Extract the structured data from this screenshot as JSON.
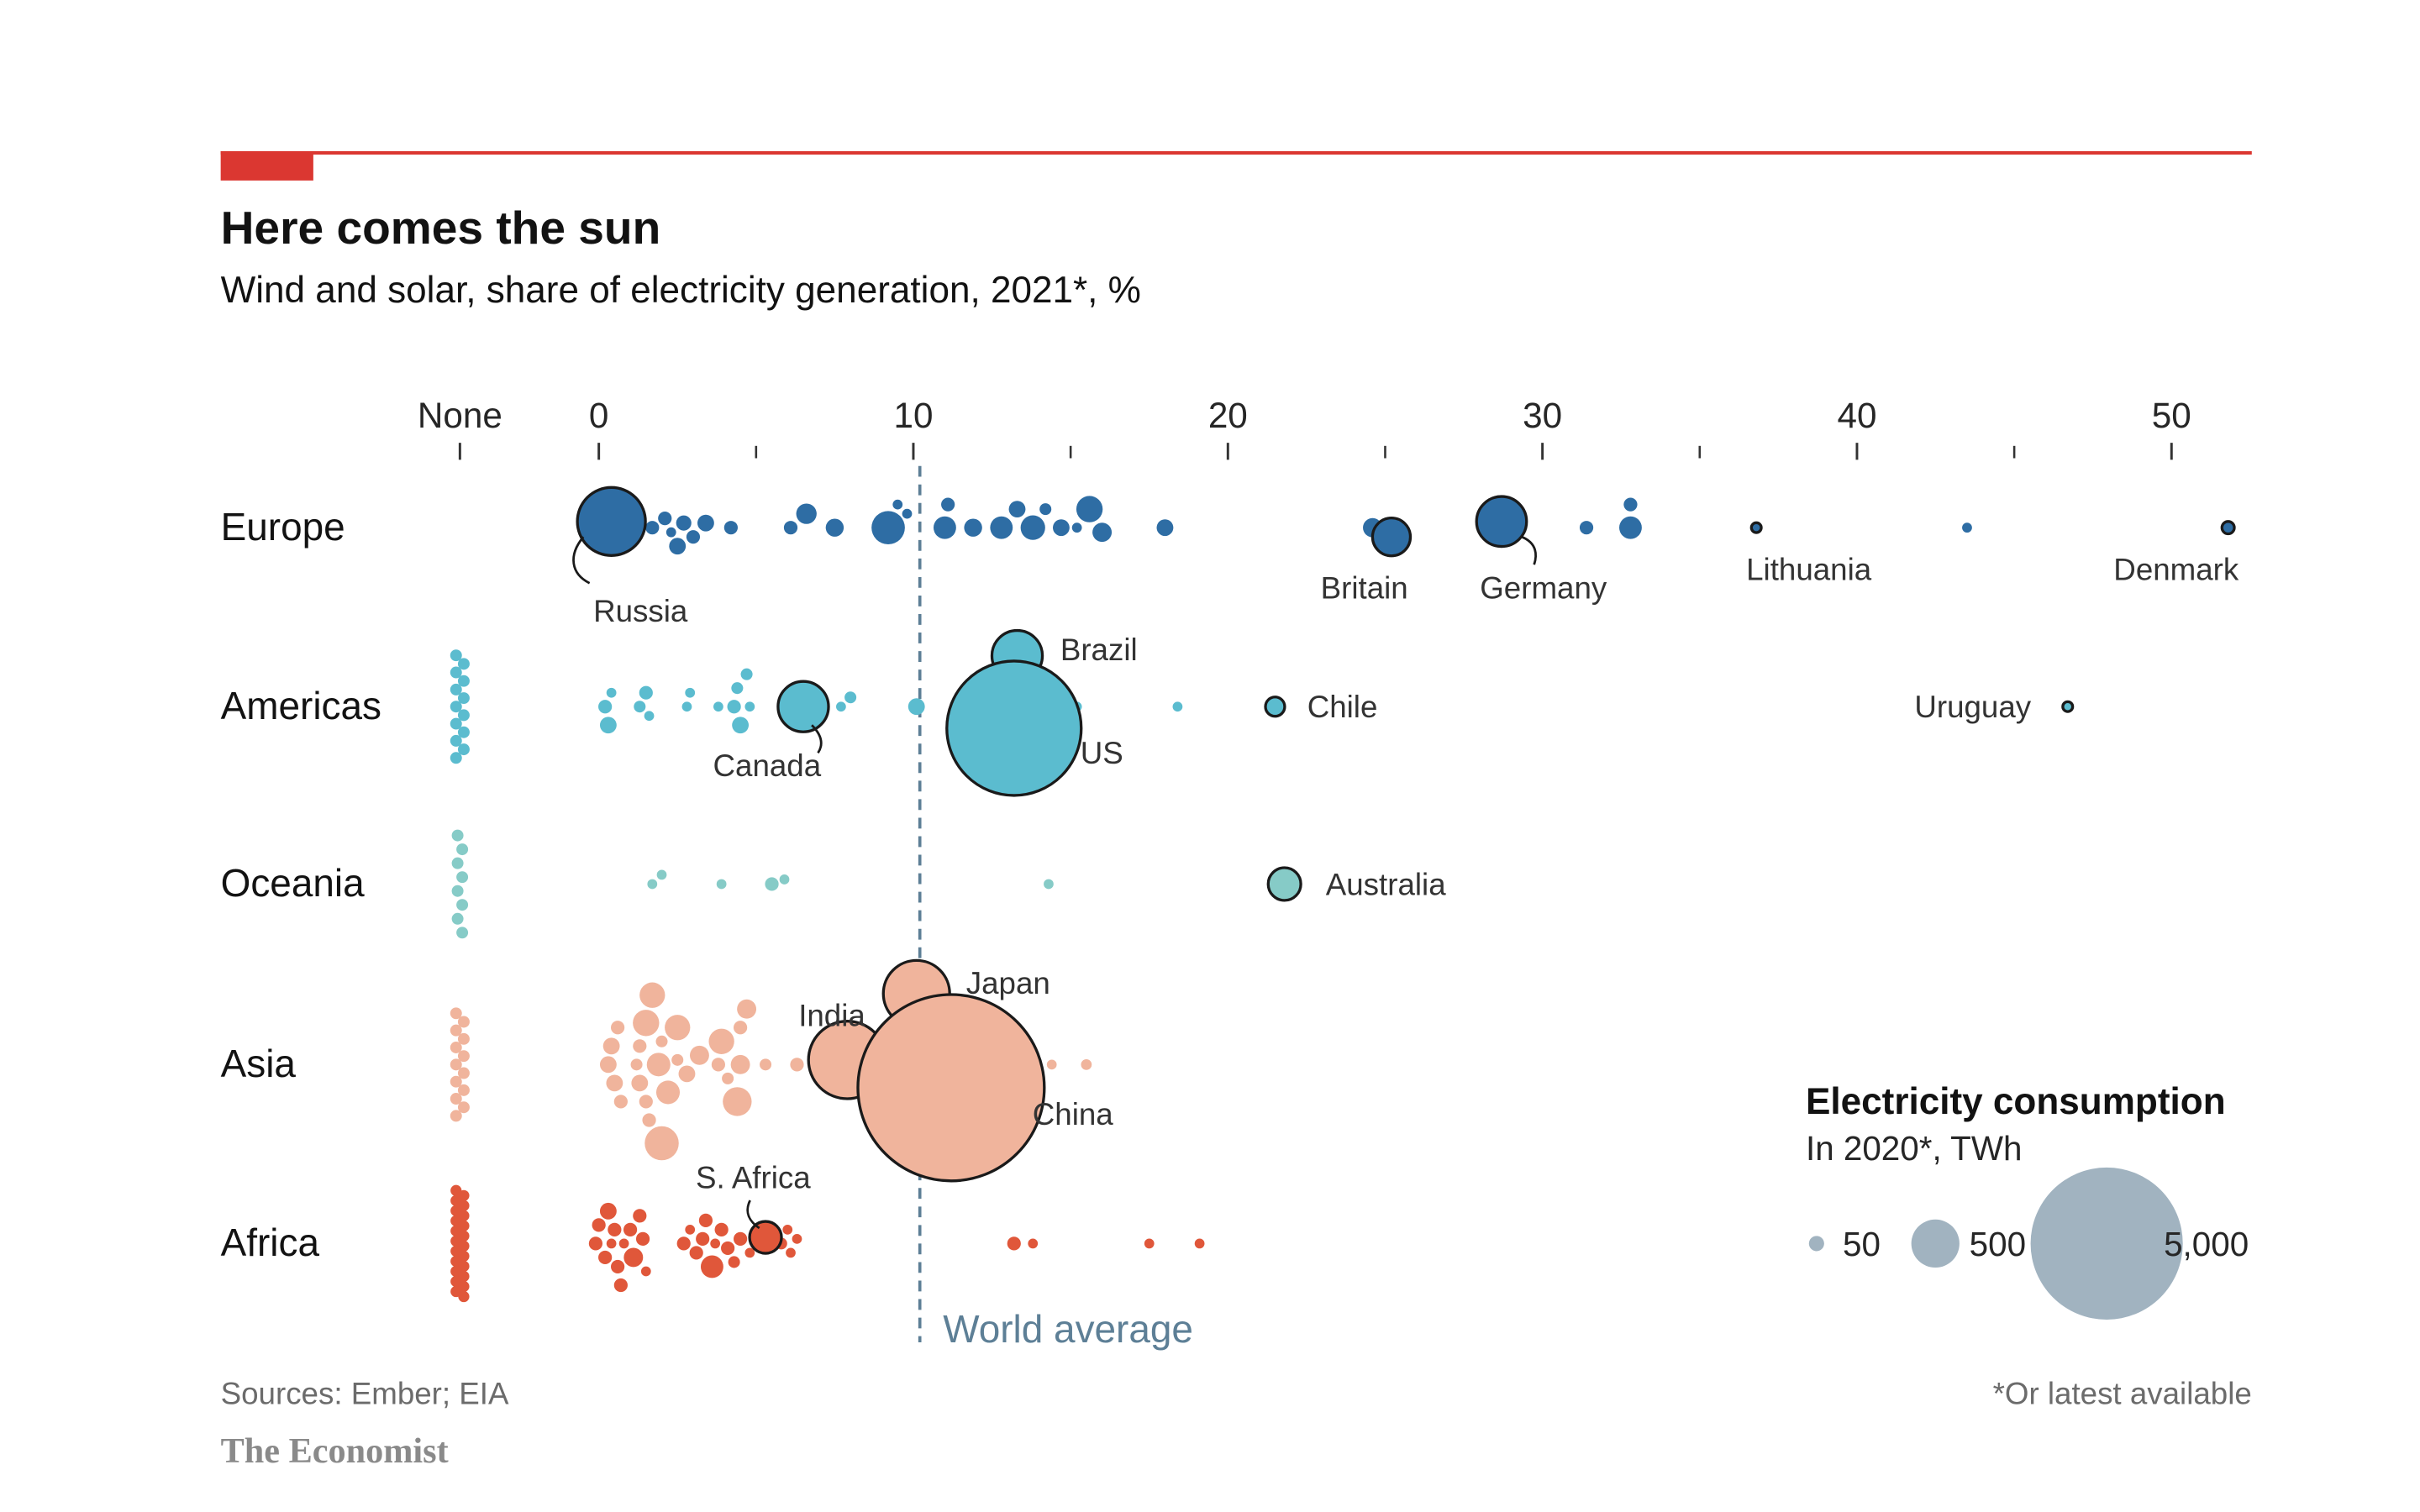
{
  "header": {
    "title": "Here comes the sun",
    "subtitle": "Wind and solar, share of electricity generation, 2021*, %"
  },
  "footer": {
    "source": "Sources: Ember; EIA",
    "brand": "The Economist",
    "note": "*Or latest available"
  },
  "colors": {
    "accent_red": "#e3120b",
    "Europe": "#2e6da4",
    "Americas": "#5bbccf",
    "Oceania": "#86cbc7",
    "Asia": "#f0b49c",
    "Africa": "#e0573a",
    "world_average": "#5d7f96",
    "legend_bubble": "#a1b3c0"
  },
  "chart_data": {
    "type": "scatter",
    "subtype": "beeswarm-bubble",
    "title": "Here comes the sun",
    "subtitle": "Wind and solar, share of electricity generation, 2021*, %",
    "xlabel": "Wind and solar share of electricity generation, %",
    "ylabel": "",
    "x_ticks": [
      "None",
      "0",
      "10",
      "20",
      "30",
      "40",
      "50"
    ],
    "xlim": [
      0,
      52
    ],
    "grid": false,
    "reference_line": {
      "label": "World average",
      "value": 10.2
    },
    "size_legend": {
      "title": "Electricity consumption",
      "subtitle": "In 2020*, TWh",
      "values": [
        50,
        500,
        5000
      ],
      "labels": [
        "50",
        "500",
        "5,000"
      ],
      "placement": "bottom-right"
    },
    "categories": [
      "Europe",
      "Americas",
      "Oceania",
      "Asia",
      "Africa"
    ],
    "series": [
      {
        "name": "Europe",
        "none_count": 0,
        "labelled": [
          {
            "name": "Russia",
            "value": 0.4,
            "twh": 1000
          },
          {
            "name": "Britain",
            "value": 25.2,
            "twh": 310
          },
          {
            "name": "Germany",
            "value": 28.7,
            "twh": 540
          },
          {
            "name": "Lithuania",
            "value": 36.8,
            "twh": 12
          },
          {
            "name": "Denmark",
            "value": 51.8,
            "twh": 33
          }
        ],
        "values": [
          0.1,
          0.6,
          0.9,
          1.3,
          1.7,
          2.1,
          2.3,
          2.5,
          2.7,
          3.0,
          3.4,
          4.2,
          6.1,
          6.6,
          7.5,
          9.2,
          9.5,
          9.8,
          11.0,
          11.1,
          11.9,
          12.8,
          13.3,
          13.8,
          14.2,
          14.7,
          15.2,
          15.6,
          16.0,
          18.0,
          24.6,
          28.5,
          31.4,
          32.8,
          32.8,
          43.5
        ],
        "sizes_twh": [
          60,
          40,
          60,
          30,
          40,
          40,
          20,
          60,
          50,
          40,
          60,
          40,
          40,
          90,
          70,
          240,
          20,
          20,
          110,
          40,
          70,
          110,
          60,
          130,
          30,
          60,
          20,
          150,
          80,
          60,
          80,
          40,
          40,
          110,
          40,
          15
        ]
      },
      {
        "name": "Americas",
        "none_count": 13,
        "labelled": [
          {
            "name": "Canada",
            "value": 6.5,
            "twh": 550
          },
          {
            "name": "Brazil",
            "value": 13.3,
            "twh": 550
          },
          {
            "name": "US",
            "value": 13.2,
            "twh": 3900
          },
          {
            "name": "Chile",
            "value": 21.5,
            "twh": 80
          },
          {
            "name": "Uruguay",
            "value": 46.7,
            "twh": 11
          }
        ],
        "values": [
          0.2,
          0.4,
          0.3,
          1.3,
          1.5,
          1.6,
          2.8,
          2.9,
          3.8,
          4.3,
          4.4,
          4.5,
          4.7,
          4.8,
          7.7,
          8.0,
          10.1,
          11.9,
          12.1,
          14.8,
          15.2,
          18.4
        ],
        "sizes_twh": [
          40,
          20,
          60,
          30,
          40,
          20,
          20,
          20,
          20,
          40,
          30,
          60,
          30,
          20,
          20,
          30,
          60,
          110,
          30,
          20,
          20,
          20
        ]
      },
      {
        "name": "Oceania",
        "none_count": 8,
        "labelled": [
          {
            "name": "Australia",
            "value": 21.8,
            "twh": 230
          }
        ],
        "values": [
          1.7,
          2.0,
          3.9,
          5.5,
          5.9,
          14.3
        ],
        "sizes_twh": [
          15,
          15,
          15,
          40,
          15,
          10
        ]
      },
      {
        "name": "Asia",
        "none_count": 13,
        "labelled": [
          {
            "name": "India",
            "value": 7.9,
            "twh": 1300
          },
          {
            "name": "Japan",
            "value": 10.1,
            "twh": 950
          },
          {
            "name": "China",
            "value": 11.2,
            "twh": 7500
          }
        ],
        "values": [
          0.3,
          0.4,
          0.5,
          0.6,
          0.7,
          1.2,
          1.3,
          1.3,
          1.5,
          1.5,
          1.6,
          1.7,
          1.9,
          2.0,
          2.0,
          2.2,
          2.5,
          2.5,
          2.8,
          3.2,
          3.8,
          3.9,
          4.1,
          4.4,
          4.5,
          4.5,
          4.7,
          5.3,
          6.3,
          10.0,
          10.8,
          14.4,
          15.5
        ],
        "sizes_twh": [
          60,
          60,
          60,
          40,
          40,
          30,
          40,
          60,
          150,
          40,
          40,
          140,
          120,
          250,
          30,
          120,
          30,
          140,
          60,
          80,
          40,
          140,
          30,
          180,
          80,
          40,
          80,
          30,
          40,
          40,
          110,
          20,
          25
        ]
      },
      {
        "name": "Africa",
        "none_count": 22,
        "labelled": [
          {
            "name": "S. Africa",
            "value": 5.3,
            "twh": 220
          }
        ],
        "values": [
          -0.1,
          0.0,
          0.2,
          0.3,
          0.4,
          0.5,
          0.6,
          0.7,
          0.8,
          1.0,
          1.1,
          1.3,
          1.4,
          1.5,
          2.7,
          2.9,
          3.1,
          3.3,
          3.4,
          3.6,
          3.7,
          3.9,
          4.1,
          4.3,
          4.5,
          4.8,
          5.8,
          6.0,
          6.1,
          6.3,
          13.2,
          13.8,
          17.5,
          19.1
        ],
        "sizes_twh": [
          40,
          40,
          40,
          60,
          20,
          40,
          40,
          40,
          20,
          40,
          80,
          40,
          40,
          20,
          40,
          20,
          40,
          40,
          40,
          110,
          20,
          40,
          40,
          30,
          40,
          20,
          30,
          20,
          20,
          20,
          40,
          20,
          20,
          20
        ]
      }
    ]
  }
}
